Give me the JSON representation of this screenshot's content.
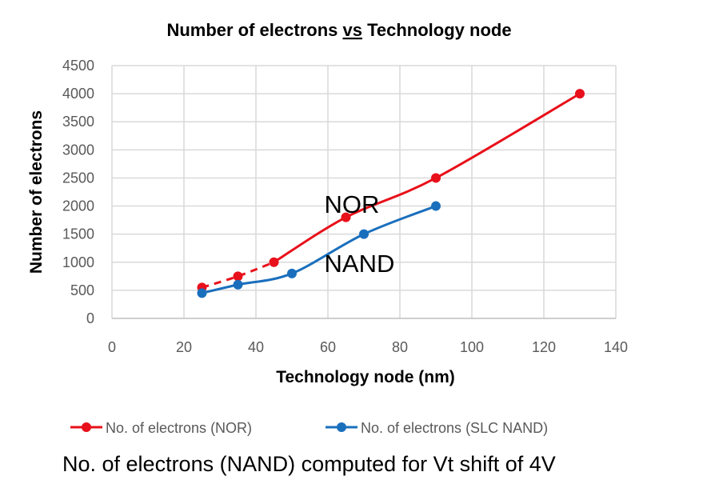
{
  "chart_data": {
    "type": "line",
    "title_parts": [
      "Number of electrons ",
      "vs",
      " Technology node"
    ],
    "xlabel": "Technology node (nm)",
    "ylabel": "Number of electrons",
    "xlim": [
      0,
      140
    ],
    "ylim": [
      0,
      4500
    ],
    "xticks": [
      0,
      20,
      40,
      60,
      80,
      100,
      120,
      140
    ],
    "yticks": [
      0,
      500,
      1000,
      1500,
      2000,
      2500,
      3000,
      3500,
      4000,
      4500
    ],
    "grid": true,
    "legend_position": "bottom",
    "series": [
      {
        "name": "No. of electrons (NOR)",
        "color": "#e8101a",
        "dashed_until_x": 45,
        "x": [
          25,
          35,
          45,
          65,
          90,
          130
        ],
        "y": [
          550,
          750,
          1000,
          1800,
          2500,
          4000
        ]
      },
      {
        "name": "No. of electrons (SLC NAND)",
        "color": "#1a6fbd",
        "x": [
          25,
          35,
          50,
          70,
          90
        ],
        "y": [
          450,
          600,
          800,
          1500,
          2000
        ]
      }
    ],
    "annotations": [
      {
        "text": "NOR",
        "x": 59,
        "y": 2050
      },
      {
        "text": "NAND",
        "x": 59,
        "y": 1000
      }
    ],
    "caption": "No. of electrons (NAND) computed for Vt shift of 4V"
  }
}
